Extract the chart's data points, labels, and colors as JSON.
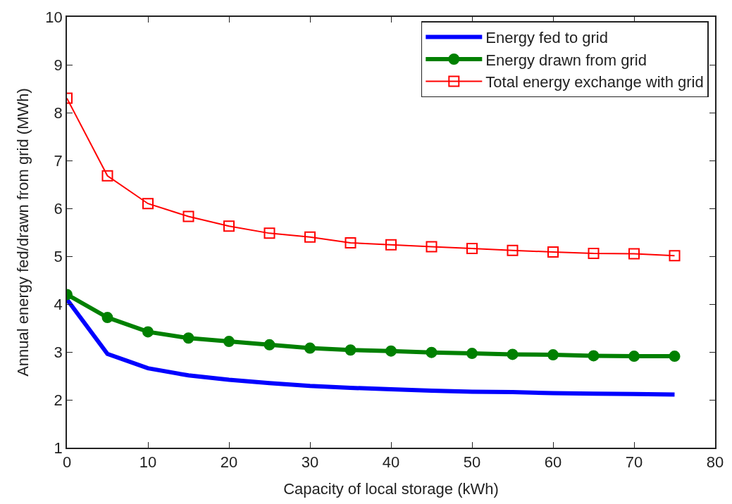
{
  "chart_data": {
    "type": "line",
    "xlabel": "Capacity of local storage (kWh)",
    "ylabel": "Annual energy fed/drawn from grid (MWh)",
    "x": [
      0,
      5,
      10,
      15,
      20,
      25,
      30,
      35,
      40,
      45,
      50,
      55,
      60,
      65,
      70,
      75
    ],
    "series": [
      {
        "name": "Energy fed to grid",
        "color": "#0000ff",
        "marker": "none",
        "values": [
          4.1,
          2.96,
          2.66,
          2.51,
          2.42,
          2.35,
          2.29,
          2.25,
          2.22,
          2.19,
          2.17,
          2.16,
          2.14,
          2.13,
          2.12,
          2.11
        ]
      },
      {
        "name": "Energy drawn from grid",
        "color": "#008000",
        "marker": "circle",
        "values": [
          4.2,
          3.72,
          3.42,
          3.29,
          3.22,
          3.15,
          3.08,
          3.04,
          3.02,
          2.99,
          2.97,
          2.95,
          2.94,
          2.92,
          2.91,
          2.91
        ]
      },
      {
        "name": "Total energy exchange with grid",
        "color": "#ff0000",
        "marker": "square",
        "values": [
          8.3,
          6.68,
          6.1,
          5.83,
          5.63,
          5.48,
          5.4,
          5.28,
          5.24,
          5.2,
          5.16,
          5.12,
          5.09,
          5.06,
          5.05,
          5.01
        ]
      }
    ],
    "xlim": [
      0,
      80
    ],
    "xticks": [
      0,
      10,
      20,
      30,
      40,
      50,
      60,
      70,
      80
    ],
    "ylim": [
      1,
      10
    ],
    "yticks": [
      1,
      2,
      3,
      4,
      5,
      6,
      7,
      8,
      9,
      10
    ],
    "grid": false,
    "legend": "top right",
    "line_style": "solid"
  }
}
